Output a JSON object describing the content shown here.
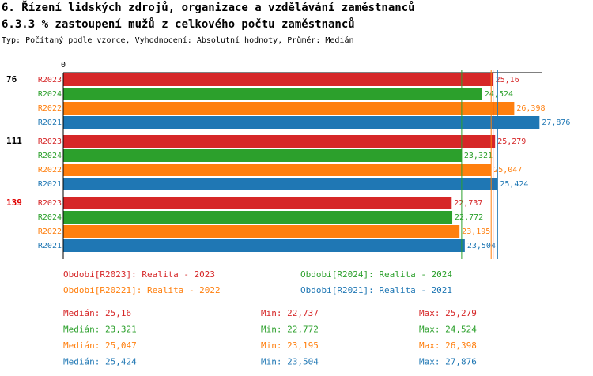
{
  "chart_data": {
    "type": "bar",
    "title": "6. Řízení lidských zdrojů, organizace a vzdělávání zaměstnanců",
    "subtitle": "6.3.3 % zastoupení mužů z celkového počtu zaměstnanců",
    "note": "Typ: Počítaný podle vzorce, Vyhodnocení: Absolutní hodnoty, Průměr: Medián",
    "xlim": [
      0,
      28
    ],
    "xticks": [
      0
    ],
    "categories": [
      "76",
      "111",
      "139"
    ],
    "category_colors": [
      "#000000",
      "#000000",
      "#e00000"
    ],
    "series": [
      {
        "name": "R2023",
        "color": "#d62728",
        "legend": "Období[R2023]: Realita - 2023",
        "values": [
          25.16,
          25.279,
          22.737
        ],
        "value_labels": [
          "25,16",
          "25,279",
          "22,737"
        ],
        "median": {
          "value": 25.16,
          "label": "Medián: 25,16"
        },
        "min": {
          "value": 22.737,
          "label": "Min: 22,737"
        },
        "max": {
          "value": 25.279,
          "label": "Max: 25,279"
        }
      },
      {
        "name": "R2024",
        "color": "#2ca02c",
        "legend": "Období[R2024]: Realita - 2024",
        "values": [
          24.524,
          23.321,
          22.772
        ],
        "value_labels": [
          "24,524",
          "23,321",
          "22,772"
        ],
        "median": {
          "value": 23.321,
          "label": "Medián: 23,321"
        },
        "min": {
          "value": 22.772,
          "label": "Min: 22,772"
        },
        "max": {
          "value": 24.524,
          "label": "Max: 24,524"
        }
      },
      {
        "name": "R2022",
        "color": "#ff7f0e",
        "legend": "Období[R20221]: Realita - 2022",
        "values": [
          26.398,
          25.047,
          23.195
        ],
        "value_labels": [
          "26,398",
          "25,047",
          "23,195"
        ],
        "median": {
          "value": 25.047,
          "label": "Medián: 25,047"
        },
        "min": {
          "value": 23.195,
          "label": "Min: 23,195"
        },
        "max": {
          "value": 26.398,
          "label": "Max: 26,398"
        }
      },
      {
        "name": "R2021",
        "color": "#1f77b4",
        "legend": "Období[R2021]: Realita - 2021",
        "values": [
          27.876,
          25.424,
          23.504
        ],
        "value_labels": [
          "27,876",
          "25,424",
          "23,504"
        ],
        "median": {
          "value": 25.424,
          "label": "Medián: 25,424"
        },
        "min": {
          "value": 23.504,
          "label": "Min: 23,504"
        },
        "max": {
          "value": 27.876,
          "label": "Max: 27,876"
        }
      }
    ]
  }
}
